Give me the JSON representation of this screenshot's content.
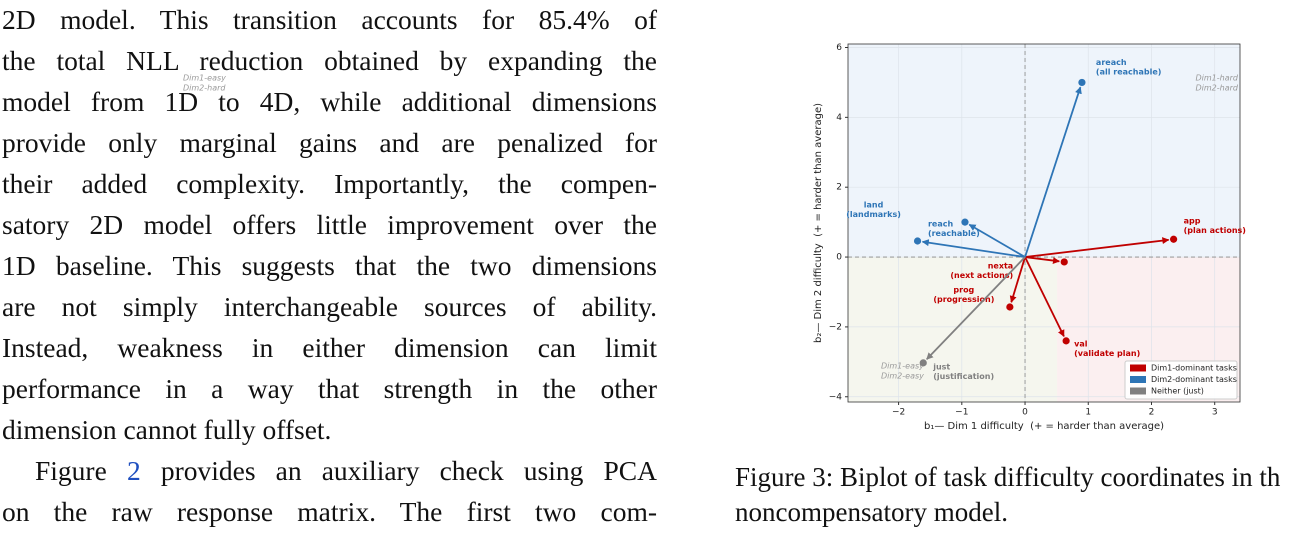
{
  "body": {
    "paragraphs": [
      {
        "lines": [
          "2D model. This transition accounts for 85.4% of",
          "the total NLL reduction obtained by expanding the",
          "model from 1D to 4D, while additional dimensions",
          "provide only marginal gains and are penalized for",
          "their added complexity. Importantly, the compen-",
          "satory 2D model offers little improvement over the",
          "1D baseline. This suggests that the two dimensions",
          "are not simply interchangeable sources of ability.",
          "Instead, weakness in either dimension can limit",
          "performance in a way that strength in the other",
          "dimension cannot fully offset."
        ]
      },
      {
        "ref_before": "Figure",
        "ref": "2",
        "ref_after": "provides an auxiliary check using PCA",
        "lines": [
          "on the raw response matrix. The first two com-"
        ]
      }
    ]
  },
  "caption": {
    "lines": [
      "Figure 3: Biplot of task difficulty coordinates in th",
      "noncompensatory model."
    ]
  },
  "chart_data": {
    "type": "biplot",
    "x_label": "b₁— Dim 1 difficulty  (+ = harder than average)",
    "y_label": "b₂— Dim 2 difficulty  (+ = harder than average)",
    "xlim": [
      -2.8,
      3.4
    ],
    "ylim": [
      -4.15,
      6.1
    ],
    "xticks": [
      {
        "value": -2,
        "label": "−2"
      },
      {
        "value": -1,
        "label": "−1"
      },
      0,
      1,
      2,
      3
    ],
    "yticks": [
      {
        "value": -4,
        "label": "−4"
      },
      {
        "value": -2,
        "label": "−2"
      },
      0,
      2,
      4,
      6
    ],
    "grid": true,
    "legend": "lower right",
    "annotations": [
      [
        "Dim1-easy",
        "Dim2-hard"
      ],
      [
        "Dim1-hard",
        "Dim2-hard"
      ],
      [
        "Dim1-easy",
        "Dim2-easy"
      ]
    ],
    "series": [
      {
        "name": "Dim1-dominant tasks",
        "color": "#c00000",
        "labels": [
          "app",
          "nexta",
          "prog",
          "val"
        ],
        "sublabels": [
          "(plan actions)",
          "(next actions)",
          "(progression)",
          "(validate plan)"
        ],
        "x": [
          2.35,
          0.62,
          -0.24,
          0.65
        ],
        "values": [
          0.51,
          -0.14,
          -1.43,
          -2.4
        ]
      },
      {
        "name": "Dim2-dominant tasks",
        "color": "#2e75b6",
        "labels": [
          "areach",
          "land",
          "reach"
        ],
        "sublabels": [
          "(all reachable)",
          "(landmarks)",
          "(reachable)"
        ],
        "x": [
          0.9,
          -1.7,
          -0.95
        ],
        "values": [
          5.0,
          0.46,
          1.0
        ]
      },
      {
        "name": "Neither (just)",
        "color": "#808080",
        "labels": [
          "just"
        ],
        "sublabels": [
          "(justification)"
        ],
        "x": [
          -1.61
        ],
        "values": [
          -3.03
        ]
      }
    ]
  }
}
